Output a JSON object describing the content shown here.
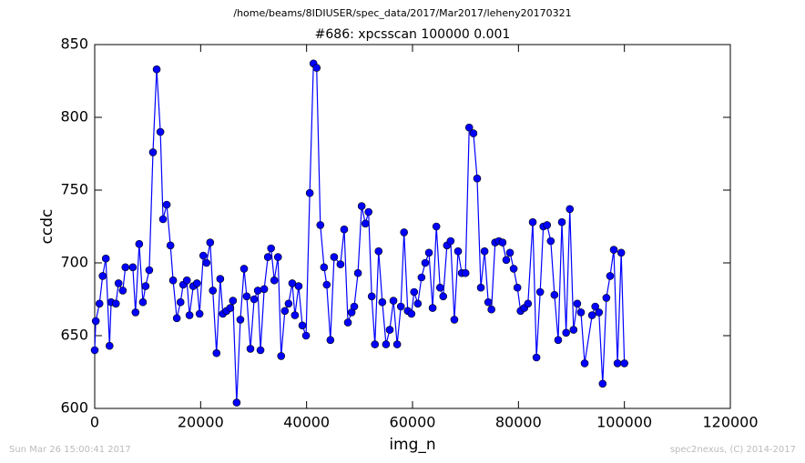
{
  "chart_data": {
    "type": "line",
    "suptitle": "/home/beams/8IDIUSER/spec_data/2017/Mar2017/leheny20170321",
    "title": "#686: xpcsscan 100000 0.001",
    "xlabel": "img_n",
    "ylabel": "ccdc",
    "footer_left": "Sun Mar 26 15:00:41 2017",
    "footer_right": "spec2nexus, (C) 2014-2017",
    "color": "#0000ff",
    "marker": true,
    "grid": false,
    "xlim": [
      0,
      120000
    ],
    "xticks": [
      0,
      20000,
      40000,
      60000,
      80000,
      100000,
      120000
    ],
    "ylim": [
      600,
      850
    ],
    "yticks": [
      600,
      650,
      700,
      750,
      800,
      850
    ],
    "x": [
      0,
      200,
      900,
      1500,
      2100,
      2800,
      3100,
      4000,
      4500,
      5300,
      5800,
      7200,
      7700,
      8400,
      9100,
      9600,
      10300,
      11000,
      11700,
      12400,
      12900,
      13600,
      14300,
      14800,
      15500,
      16200,
      16700,
      17400,
      17900,
      18600,
      19300,
      19800,
      20500,
      21100,
      21800,
      22300,
      23000,
      23700,
      24200,
      24900,
      25600,
      26100,
      26800,
      27500,
      28200,
      28700,
      29400,
      30100,
      30800,
      31300,
      32000,
      32700,
      33300,
      33900,
      34600,
      35200,
      35900,
      36600,
      37300,
      37800,
      38500,
      39200,
      39900,
      40600,
      41300,
      41900,
      42600,
      43300,
      43800,
      44500,
      45200,
      46400,
      47100,
      47800,
      48500,
      49000,
      49700,
      50400,
      51100,
      51700,
      52300,
      52900,
      53600,
      54300,
      55000,
      55700,
      56400,
      57100,
      57800,
      58400,
      59100,
      59800,
      60300,
      61000,
      61700,
      62400,
      63100,
      63800,
      64500,
      65200,
      65800,
      66500,
      67200,
      67900,
      68600,
      69300,
      70000,
      70700,
      71500,
      72200,
      72900,
      73600,
      74300,
      74900,
      75600,
      76300,
      77000,
      77700,
      78400,
      79100,
      79800,
      80400,
      81100,
      81800,
      82700,
      83400,
      84100,
      84700,
      85400,
      86100,
      86800,
      87500,
      88200,
      89000,
      89700,
      90400,
      91100,
      91800,
      92500,
      93900,
      94500,
      95200,
      95900,
      96600,
      97300,
      98000,
      98700,
      99400,
      100000
    ],
    "values": [
      640,
      660,
      672,
      691,
      703,
      643,
      673,
      672,
      686,
      681,
      697,
      697,
      666,
      713,
      673,
      684,
      695,
      776,
      833,
      790,
      730,
      740,
      712,
      688,
      662,
      673,
      685,
      688,
      664,
      684,
      686,
      665,
      705,
      700,
      714,
      681,
      638,
      689,
      665,
      667,
      669,
      674,
      604,
      661,
      696,
      677,
      641,
      675,
      681,
      640,
      682,
      704,
      710,
      688,
      704,
      636,
      667,
      672,
      686,
      664,
      684,
      657,
      650,
      748,
      837,
      834,
      726,
      697,
      685,
      647,
      704,
      699,
      723,
      659,
      666,
      670,
      693,
      739,
      727,
      735,
      677,
      644,
      708,
      673,
      644,
      654,
      674,
      644,
      670,
      721,
      667,
      665,
      680,
      672,
      690,
      700,
      707,
      669,
      725,
      683,
      677,
      712,
      715,
      661,
      708,
      693,
      693,
      793,
      789,
      758,
      683,
      708,
      673,
      668,
      714,
      715,
      714,
      702,
      707,
      696,
      683,
      667,
      669,
      672,
      728,
      635,
      680,
      725,
      726,
      715,
      678,
      647,
      728,
      652,
      737,
      654,
      672,
      666,
      631,
      664,
      670,
      666,
      617,
      676,
      691,
      709,
      631,
      707,
      631
    ]
  }
}
